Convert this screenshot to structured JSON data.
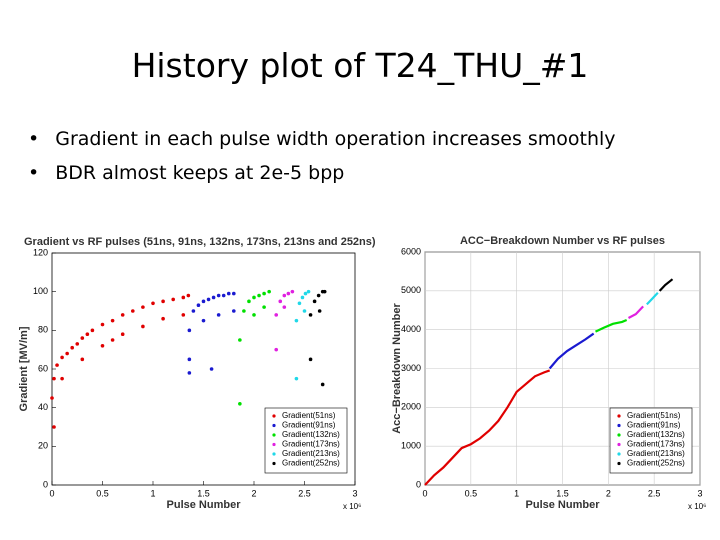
{
  "slide": {
    "title": "History plot of T24_THU_#1",
    "bullets": [
      "Gradient in each pulse width operation increases smoothly",
      "BDR almost keeps at 2e-5 bpp"
    ]
  },
  "chart_data": [
    {
      "type": "scatter",
      "title": "Gradient vs RF pulses (51ns, 91ns, 132ns, 173ns, 213ns and 252ns)",
      "x_label": "Pulse Number",
      "y_label": "Gradient [MV/m]",
      "x_scale_label": "x 10⁶",
      "xlim": [
        0,
        3
      ],
      "xticks": [
        0,
        0.5,
        1,
        1.5,
        2,
        2.5,
        3
      ],
      "ylim": [
        0,
        120
      ],
      "yticks": [
        0,
        20,
        40,
        60,
        80,
        100,
        120
      ],
      "grid": false,
      "legend": "bottom-right",
      "series": [
        {
          "name": "Gradient(51ns)",
          "color": "#e00000",
          "x": [
            0,
            0.02,
            0.05,
            0.1,
            0.15,
            0.2,
            0.25,
            0.3,
            0.35,
            0.4,
            0.5,
            0.6,
            0.7,
            0.8,
            0.9,
            1.0,
            1.1,
            1.2,
            1.3,
            1.35,
            0.1,
            0.3,
            0.5,
            0.7,
            0.9,
            1.1,
            1.3,
            0.02,
            0.6
          ],
          "values": [
            45,
            55,
            62,
            66,
            68,
            71,
            73,
            76,
            78,
            80,
            83,
            85,
            88,
            90,
            92,
            94,
            95,
            96,
            97,
            98,
            55,
            65,
            72,
            78,
            82,
            86,
            88,
            30,
            75
          ]
        },
        {
          "name": "Gradient(91ns)",
          "color": "#1a1ad0",
          "x": [
            1.36,
            1.4,
            1.45,
            1.5,
            1.55,
            1.6,
            1.65,
            1.7,
            1.75,
            1.8,
            1.36,
            1.5,
            1.65,
            1.8,
            1.36,
            1.58
          ],
          "values": [
            80,
            90,
            93,
            95,
            96,
            97,
            98,
            98,
            99,
            99,
            65,
            85,
            88,
            90,
            58,
            60
          ]
        },
        {
          "name": "Gradient(132ns)",
          "color": "#00e000",
          "x": [
            1.86,
            1.9,
            1.95,
            2.0,
            2.05,
            2.1,
            2.15,
            1.86,
            2.0,
            2.1
          ],
          "values": [
            75,
            90,
            95,
            97,
            98,
            99,
            100,
            42,
            88,
            92
          ]
        },
        {
          "name": "Gradient(173ns)",
          "color": "#e020e0",
          "x": [
            2.22,
            2.26,
            2.3,
            2.34,
            2.38,
            2.22,
            2.3
          ],
          "values": [
            88,
            95,
            98,
            99,
            100,
            70,
            92
          ]
        },
        {
          "name": "Gradient(213ns)",
          "color": "#20d8e8",
          "x": [
            2.42,
            2.45,
            2.48,
            2.51,
            2.54,
            2.42,
            2.5
          ],
          "values": [
            85,
            94,
            97,
            99,
            100,
            55,
            90
          ]
        },
        {
          "name": "Gradient(252ns)",
          "color": "#000000",
          "x": [
            2.56,
            2.6,
            2.64,
            2.68,
            2.7,
            2.56,
            2.65,
            2.68
          ],
          "values": [
            88,
            95,
            98,
            100,
            100,
            65,
            90,
            52
          ]
        }
      ]
    },
    {
      "type": "line",
      "title": "ACC−Breakdown Number vs RF pulses",
      "x_label": "Pulse Number",
      "y_label": "Acc−Breakdown Number",
      "x_scale_label": "x 10⁶",
      "xlim": [
        0,
        3
      ],
      "xticks": [
        0,
        0.5,
        1,
        1.5,
        2,
        2.5,
        3
      ],
      "ylim": [
        0,
        6000
      ],
      "yticks": [
        0,
        1000,
        2000,
        3000,
        4000,
        5000,
        6000
      ],
      "grid": true,
      "legend": "bottom-right",
      "series": [
        {
          "name": "Gradient(51ns)",
          "color": "#e00000",
          "x": [
            0,
            0.1,
            0.2,
            0.3,
            0.4,
            0.5,
            0.6,
            0.7,
            0.8,
            0.9,
            1.0,
            1.1,
            1.2,
            1.3,
            1.36
          ],
          "values": [
            0,
            250,
            450,
            700,
            950,
            1050,
            1200,
            1400,
            1650,
            2000,
            2400,
            2600,
            2800,
            2900,
            2950
          ]
        },
        {
          "name": "Gradient(91ns)",
          "color": "#1a1ad0",
          "x": [
            1.36,
            1.45,
            1.55,
            1.65,
            1.75,
            1.84
          ],
          "values": [
            3000,
            3250,
            3450,
            3600,
            3750,
            3900
          ]
        },
        {
          "name": "Gradient(132ns)",
          "color": "#00e000",
          "x": [
            1.86,
            1.95,
            2.05,
            2.15,
            2.2
          ],
          "values": [
            3950,
            4050,
            4150,
            4200,
            4250
          ]
        },
        {
          "name": "Gradient(173ns)",
          "color": "#e020e0",
          "x": [
            2.22,
            2.3,
            2.38
          ],
          "values": [
            4300,
            4400,
            4600
          ]
        },
        {
          "name": "Gradient(213ns)",
          "color": "#20d8e8",
          "x": [
            2.42,
            2.48,
            2.54
          ],
          "values": [
            4650,
            4800,
            4950
          ]
        },
        {
          "name": "Gradient(252ns)",
          "color": "#000000",
          "x": [
            2.56,
            2.62,
            2.7
          ],
          "values": [
            5000,
            5150,
            5300
          ]
        }
      ]
    }
  ]
}
